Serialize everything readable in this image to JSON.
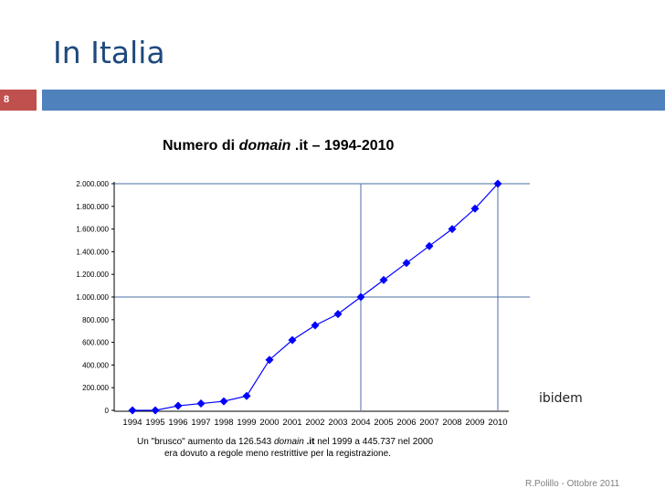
{
  "slide": {
    "title": "In Italia",
    "number": "8",
    "side_note": "ibidem",
    "footer": "R.Polillo - Ottobre 2011"
  },
  "colors": {
    "title": "#1f497d",
    "number_box": "#c0504d",
    "accent_bar": "#4f81bd",
    "series": "#0000ff",
    "reference_lines": "#4a6fa5"
  },
  "chart_data": {
    "type": "line",
    "title_parts": [
      "Numero di ",
      "domain",
      " .it – 1994-2010"
    ],
    "x": [
      "1994",
      "1995",
      "1996",
      "1997",
      "1998",
      "1999",
      "2000",
      "2001",
      "2002",
      "2003",
      "2004",
      "2005",
      "2006",
      "2007",
      "2008",
      "2009",
      "2010"
    ],
    "series": [
      {
        "values": [
          0,
          0,
          40000,
          60000,
          80000,
          126543,
          445737,
          620000,
          750000,
          850000,
          1000000,
          1150000,
          1300000,
          1450000,
          1600000,
          1780000,
          2000000
        ]
      }
    ],
    "yticks": [
      "0",
      "200.000",
      "400.000",
      "600.000",
      "800.000",
      "1.000.000",
      "1.200.000",
      "1.400.000",
      "1.600.000",
      "1.800.000",
      "2.000.000"
    ],
    "ylim": [
      0,
      2000000
    ],
    "reference_lines": {
      "vertical_x": [
        "2004",
        "2010"
      ],
      "horizontal_y": [
        1000000,
        2000000
      ]
    },
    "caption_line1": [
      "Un \"brusco\" aumento da 126.543 ",
      "domain",
      " .it",
      " nel 1999 a 445.737 nel 2000"
    ],
    "caption_line2": "era dovuto a regole meno restrittive per la registrazione.",
    "grid": false,
    "legend": "none"
  }
}
